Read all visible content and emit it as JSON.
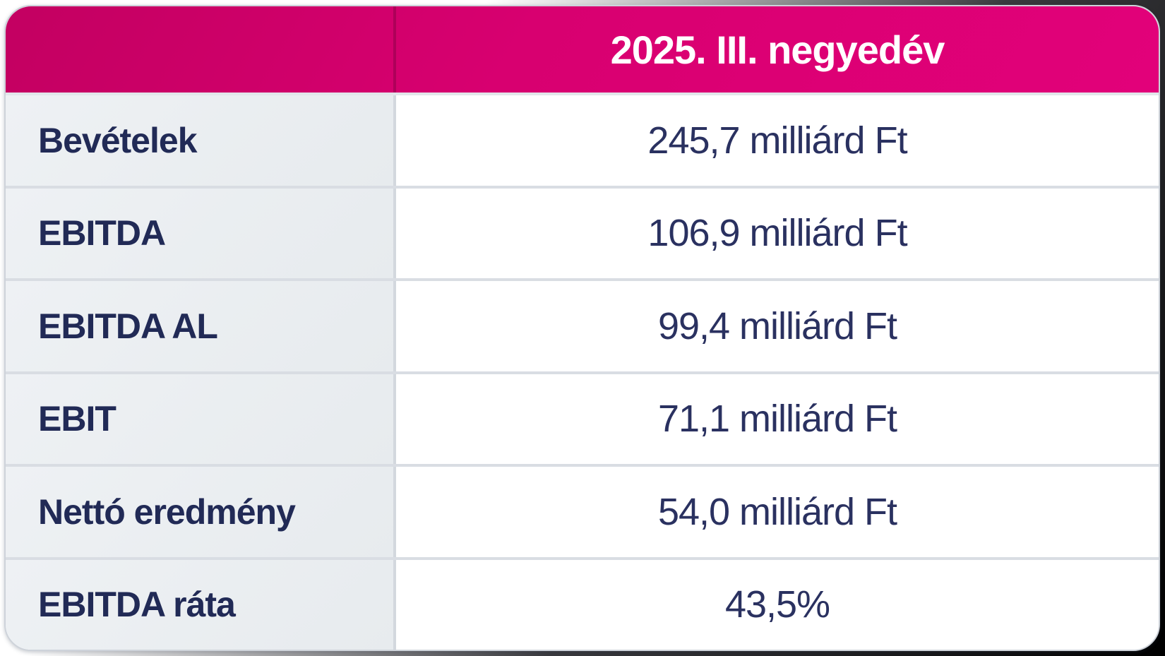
{
  "table": {
    "header": "2025. III. negyedév",
    "rows": [
      {
        "label": "Bevételek",
        "value": "245,7 milliárd Ft"
      },
      {
        "label": "EBITDA",
        "value": "106,9 milliárd Ft"
      },
      {
        "label": "EBITDA AL",
        "value": "99,4 milliárd Ft"
      },
      {
        "label": "EBIT",
        "value": "71,1 milliárd Ft"
      },
      {
        "label": "Nettó eredmény",
        "value": "54,0 milliárd Ft"
      },
      {
        "label": "EBITDA ráta",
        "value": "43,5%"
      }
    ]
  },
  "chart_data": {
    "type": "table",
    "title": "2025. III. negyedév",
    "columns": [
      "",
      "2025. III. negyedév"
    ],
    "rows": [
      [
        "Bevételek",
        "245,7 milliárd Ft"
      ],
      [
        "EBITDA",
        "106,9 milliárd Ft"
      ],
      [
        "EBITDA AL",
        "99,4 milliárd Ft"
      ],
      [
        "EBIT",
        "71,1 milliárd Ft"
      ],
      [
        "Nettó eredmény",
        "54,0 milliárd Ft"
      ],
      [
        "EBITDA ráta",
        "43,5%"
      ]
    ],
    "numeric_values": {
      "bevetelek_mrd_ft": 245.7,
      "ebitda_mrd_ft": 106.9,
      "ebitda_al_mrd_ft": 99.4,
      "ebit_mrd_ft": 71.1,
      "netto_eredmeny_mrd_ft": 54.0,
      "ebitda_rata_pct": 43.5
    },
    "unit": "milliárd Ft"
  },
  "colors": {
    "header_magenta": "#d80070",
    "header_magenta_dark": "#c30061",
    "header_magenta_light": "#e2017a",
    "label_cell_bg": "#e9edf0",
    "value_cell_bg": "#ffffff",
    "grid_line": "#d9dde3",
    "label_text": "#212a56",
    "value_text": "#2a3160",
    "header_text": "#ffffff"
  }
}
